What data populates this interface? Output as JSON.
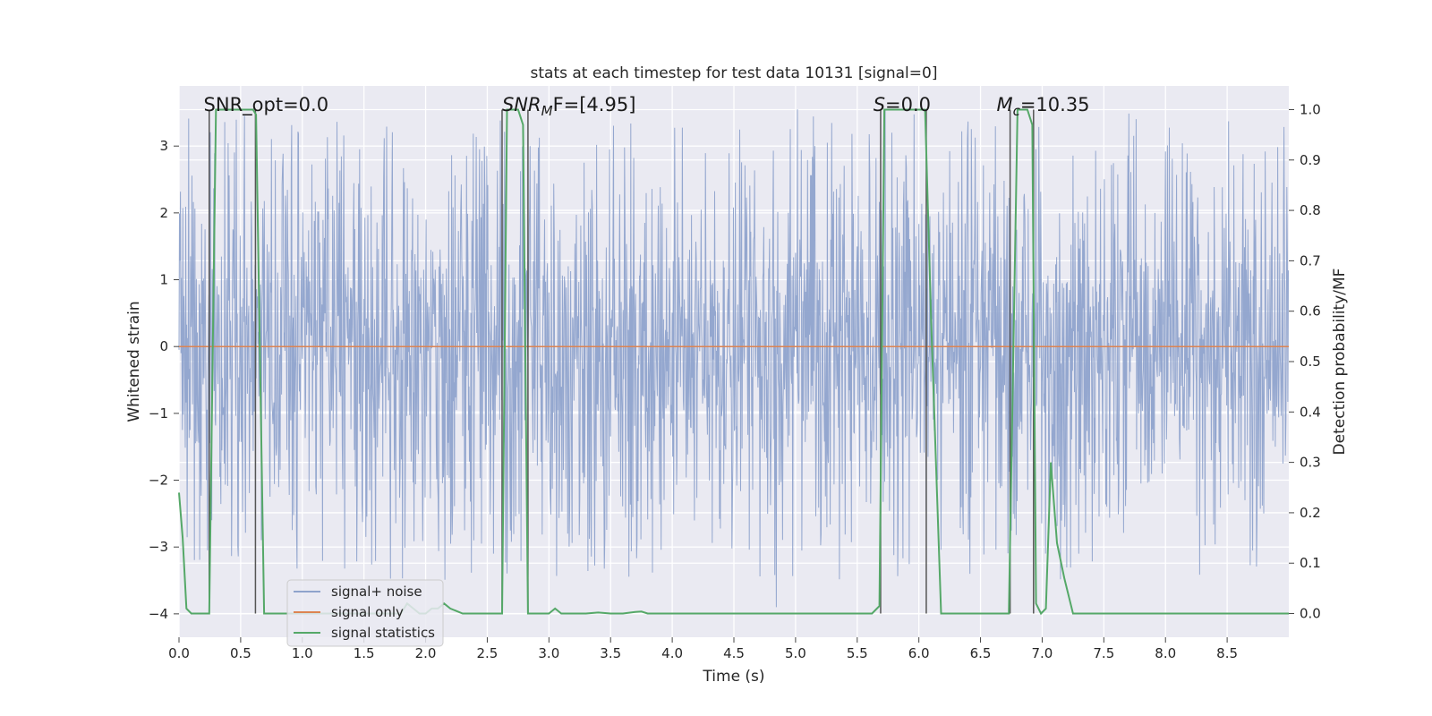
{
  "chart_data": {
    "type": "line",
    "title": "stats at each timestep for test data 10131 [signal=0]",
    "xlabel": "Time (s)",
    "ylabel": "Whitened strain",
    "y2label": "Detection probability/MF",
    "xlim": [
      0.0,
      9.0
    ],
    "ylim": [
      -4.35,
      3.9
    ],
    "y2lim": [
      -0.047,
      1.047
    ],
    "xticks": [
      "0.0",
      "0.5",
      "1.0",
      "1.5",
      "2.0",
      "2.5",
      "3.0",
      "3.5",
      "4.0",
      "4.5",
      "5.0",
      "5.5",
      "6.0",
      "6.5",
      "7.0",
      "7.5",
      "8.0",
      "8.5"
    ],
    "yticks": [
      "−4",
      "−3",
      "−2",
      "−1",
      "0",
      "1",
      "2",
      "3"
    ],
    "y2ticks": [
      "0.0",
      "0.1",
      "0.2",
      "0.3",
      "0.4",
      "0.5",
      "0.6",
      "0.7",
      "0.8",
      "0.9",
      "1.0"
    ],
    "grid": true,
    "legend_position": "lower-left",
    "colors": {
      "noise": "#8fa3cc",
      "signal": "#dd8452",
      "stats": "#55a868",
      "vline": "#555555",
      "plot_bg": "#eaeaf2",
      "grid": "#ffffff"
    },
    "series": [
      {
        "name": "signal+ noise",
        "kind": "noise",
        "sample_rate_hz": 256,
        "seed": 10131,
        "typical_amplitude": 1.75,
        "approx_range": [
          -3.9,
          3.55
        ]
      },
      {
        "name": "signal only",
        "kind": "constant",
        "value": 0.0
      },
      {
        "name": "signal statistics",
        "kind": "line",
        "axis": "right",
        "x": [
          0.0,
          0.03,
          0.06,
          0.1,
          0.15,
          0.2,
          0.245,
          0.3,
          0.36,
          0.45,
          0.55,
          0.6,
          0.625,
          0.655,
          0.69,
          0.8,
          1.0,
          1.2,
          1.5,
          1.7,
          1.8,
          1.85,
          1.9,
          1.95,
          2.0,
          2.05,
          2.1,
          2.15,
          2.2,
          2.3,
          2.4,
          2.5,
          2.6,
          2.62,
          2.66,
          2.7,
          2.75,
          2.79,
          2.83,
          2.88,
          2.95,
          3.0,
          3.05,
          3.1,
          3.2,
          3.3,
          3.4,
          3.5,
          3.6,
          3.7,
          3.75,
          3.8,
          3.9,
          4.0,
          4.5,
          5.0,
          5.5,
          5.62,
          5.68,
          5.72,
          5.78,
          5.9,
          6.0,
          6.05,
          6.1,
          6.18,
          6.3,
          6.5,
          6.7,
          6.73,
          6.8,
          6.85,
          6.88,
          6.92,
          6.95,
          6.99,
          7.03,
          7.07,
          7.12,
          7.18,
          7.25,
          7.3,
          7.5,
          8.0,
          8.5,
          9.0
        ],
        "y": [
          0.24,
          0.15,
          0.01,
          0.0,
          0.0,
          0.0,
          0.0,
          1.0,
          1.0,
          1.0,
          1.0,
          1.0,
          0.99,
          0.54,
          0.0,
          0.0,
          0.0,
          0.0,
          0.0,
          0.0,
          0.0,
          0.02,
          0.01,
          0.0,
          0.0,
          0.01,
          0.01,
          0.02,
          0.01,
          0.0,
          0.0,
          0.0,
          0.0,
          0.0,
          1.0,
          1.0,
          1.0,
          0.97,
          0.0,
          0.0,
          0.0,
          0.0,
          0.01,
          0.0,
          0.0,
          0.0,
          0.002,
          0.0,
          0.0,
          0.003,
          0.004,
          0.0,
          0.0,
          0.0,
          0.0,
          0.0,
          0.0,
          0.0,
          0.015,
          1.0,
          1.0,
          1.0,
          1.0,
          1.0,
          0.58,
          0.0,
          0.0,
          0.0,
          0.0,
          0.0,
          1.0,
          1.0,
          1.0,
          0.97,
          0.02,
          0.0,
          0.01,
          0.3,
          0.14,
          0.07,
          0.0,
          0.0,
          0.0,
          0.0,
          0.0,
          0.0
        ]
      }
    ],
    "vlines": [
      0.245,
      0.62,
      2.62,
      2.83,
      5.69,
      6.06,
      6.74,
      6.93
    ],
    "annotations": [
      {
        "id": "snr-opt",
        "x": 0.2,
        "text": "SNR_opt=0.0"
      },
      {
        "id": "snr-mf",
        "x": 2.62,
        "text": "SNR",
        "sub": "M",
        "rest": "F=[4.95]",
        "italic": true
      },
      {
        "id": "s-val",
        "x": 5.63,
        "text": "S",
        "rest": "=0.0",
        "italic": true
      },
      {
        "id": "mc-val",
        "x": 6.63,
        "text": "M",
        "sub": "c",
        "rest": "=10.35",
        "italic": true
      }
    ]
  }
}
